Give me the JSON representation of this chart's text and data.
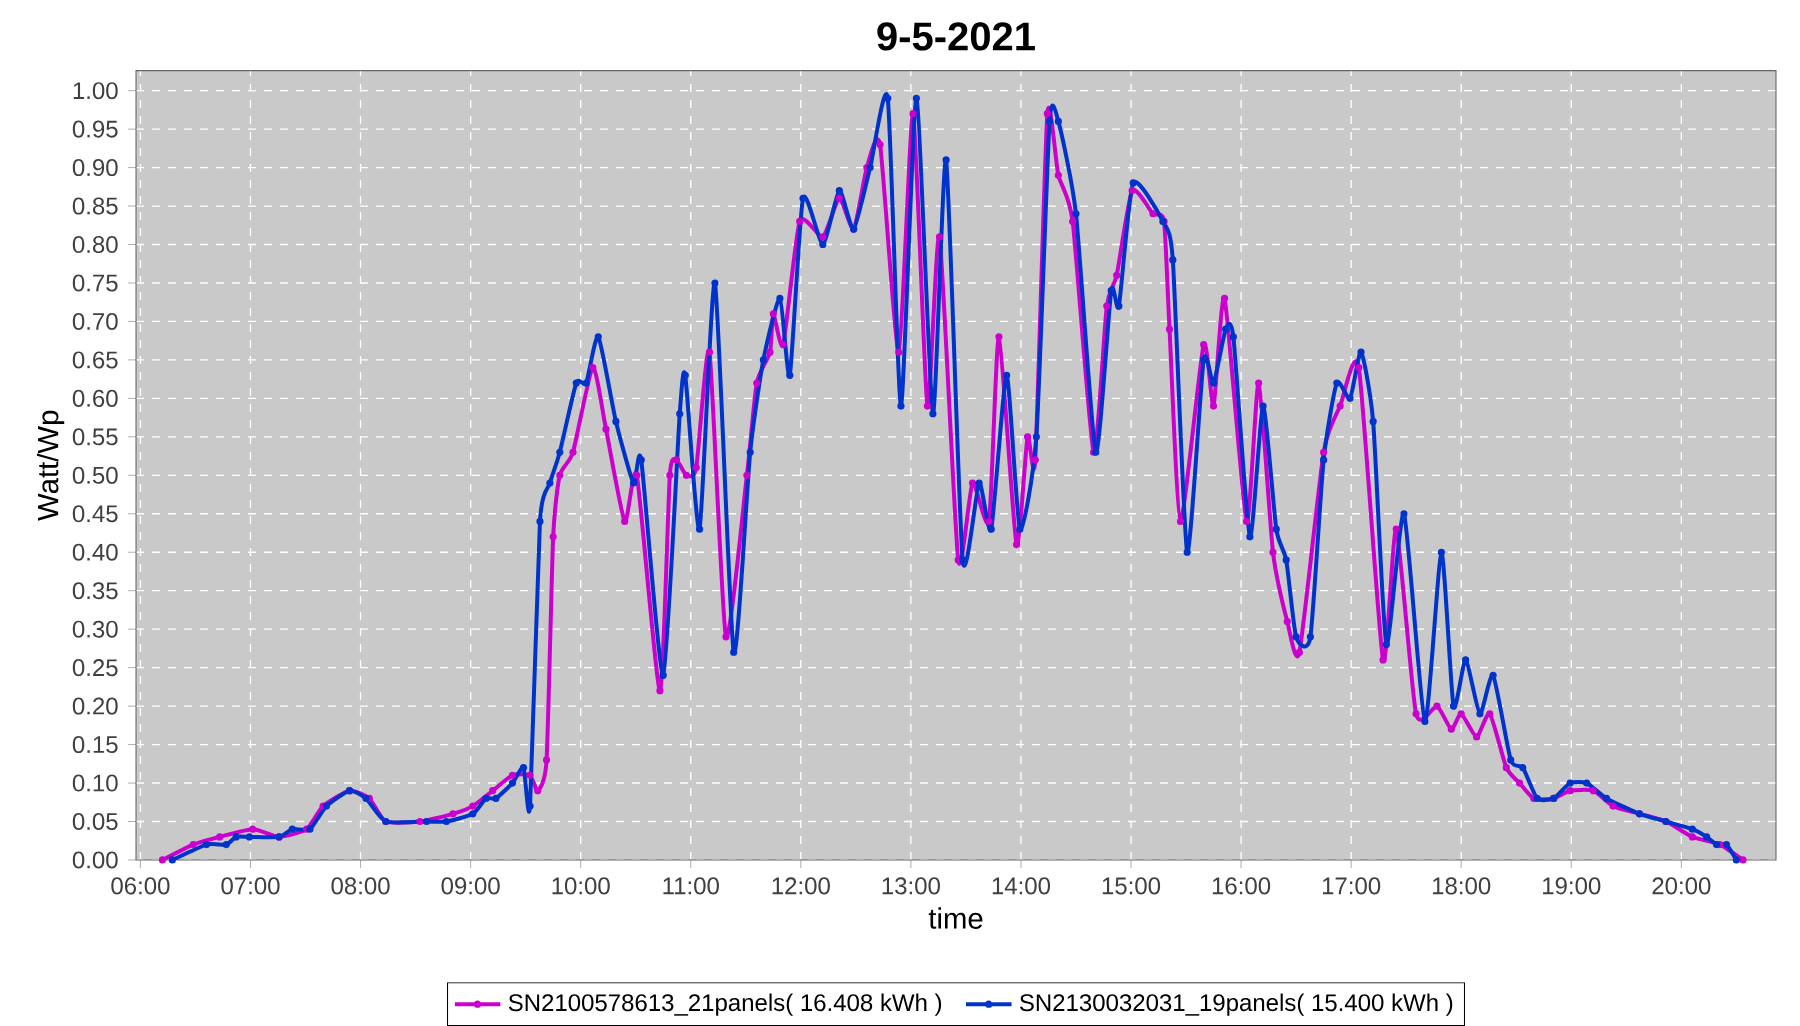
{
  "chart_data": {
    "type": "line",
    "title": "9-5-2021",
    "xlabel": "time",
    "ylabel": "Watt/Wp",
    "xlim": [
      5.96,
      20.86
    ],
    "ylim": [
      0,
      1.026
    ],
    "xticks": [
      {
        "value": 6,
        "label": "06:00"
      },
      {
        "value": 7,
        "label": "07:00"
      },
      {
        "value": 8,
        "label": "08:00"
      },
      {
        "value": 9,
        "label": "09:00"
      },
      {
        "value": 10,
        "label": "10:00"
      },
      {
        "value": 11,
        "label": "11:00"
      },
      {
        "value": 12,
        "label": "12:00"
      },
      {
        "value": 13,
        "label": "13:00"
      },
      {
        "value": 14,
        "label": "14:00"
      },
      {
        "value": 15,
        "label": "15:00"
      },
      {
        "value": 16,
        "label": "16:00"
      },
      {
        "value": 17,
        "label": "17:00"
      },
      {
        "value": 18,
        "label": "18:00"
      },
      {
        "value": 19,
        "label": "19:00"
      },
      {
        "value": 20,
        "label": "20:00"
      }
    ],
    "yticks": [
      {
        "value": 0,
        "label": "0.00"
      },
      {
        "value": 0.05,
        "label": "0.05"
      },
      {
        "value": 0.1,
        "label": "0.10"
      },
      {
        "value": 0.15,
        "label": "0.15"
      },
      {
        "value": 0.2,
        "label": "0.20"
      },
      {
        "value": 0.25,
        "label": "0.25"
      },
      {
        "value": 0.3,
        "label": "0.30"
      },
      {
        "value": 0.35,
        "label": "0.35"
      },
      {
        "value": 0.4,
        "label": "0.40"
      },
      {
        "value": 0.45,
        "label": "0.45"
      },
      {
        "value": 0.5,
        "label": "0.50"
      },
      {
        "value": 0.55,
        "label": "0.55"
      },
      {
        "value": 0.6,
        "label": "0.60"
      },
      {
        "value": 0.65,
        "label": "0.65"
      },
      {
        "value": 0.7,
        "label": "0.70"
      },
      {
        "value": 0.75,
        "label": "0.75"
      },
      {
        "value": 0.8,
        "label": "0.80"
      },
      {
        "value": 0.85,
        "label": "0.85"
      },
      {
        "value": 0.9,
        "label": "0.90"
      },
      {
        "value": 0.95,
        "label": "0.95"
      },
      {
        "value": 1,
        "label": "1.00"
      }
    ],
    "grid": true,
    "legend": "bottom",
    "marker": "circle",
    "line_style": "solid",
    "series": [
      {
        "name": "SN2100578613_21panels( 16.408 kWh )",
        "color": "#cc00cc",
        "x": [
          6.2,
          6.48,
          6.72,
          7.02,
          7.26,
          7.51,
          7.66,
          7.9,
          8.08,
          8.23,
          8.54,
          8.84,
          9.02,
          9.2,
          9.38,
          9.54,
          9.61,
          9.69,
          9.75,
          9.81,
          9.93,
          10.11,
          10.23,
          10.4,
          10.51,
          10.72,
          10.81,
          10.87,
          10.96,
          11.05,
          11.17,
          11.32,
          11.51,
          11.6,
          11.72,
          11.75,
          11.84,
          11.99,
          12.2,
          12.35,
          12.48,
          12.6,
          12.72,
          12.89,
          13.02,
          13.15,
          13.26,
          13.43,
          13.56,
          13.71,
          13.8,
          13.96,
          14.06,
          14.13,
          14.24,
          14.34,
          14.47,
          14.66,
          14.78,
          14.87,
          15.01,
          15.2,
          15.3,
          15.35,
          15.45,
          15.66,
          15.75,
          15.85,
          16.05,
          16.16,
          16.29,
          16.42,
          16.53,
          16.75,
          16.9,
          17.07,
          17.29,
          17.41,
          17.59,
          17.78,
          17.91,
          18.0,
          18.14,
          18.26,
          18.41,
          18.53,
          18.66,
          18.84,
          18.99,
          19.2,
          19.38,
          19.62,
          19.86,
          20.1,
          20.35,
          20.56
        ],
        "values": [
          0,
          0.02,
          0.03,
          0.04,
          0.03,
          0.04,
          0.07,
          0.09,
          0.08,
          0.05,
          0.05,
          0.06,
          0.07,
          0.09,
          0.11,
          0.11,
          0.09,
          0.13,
          0.42,
          0.5,
          0.53,
          0.64,
          0.56,
          0.44,
          0.5,
          0.22,
          0.5,
          0.52,
          0.5,
          0.51,
          0.66,
          0.29,
          0.5,
          0.62,
          0.66,
          0.71,
          0.67,
          0.83,
          0.81,
          0.86,
          0.82,
          0.9,
          0.93,
          0.66,
          0.97,
          0.59,
          0.81,
          0.39,
          0.49,
          0.44,
          0.68,
          0.41,
          0.55,
          0.52,
          0.97,
          0.89,
          0.83,
          0.53,
          0.72,
          0.76,
          0.87,
          0.84,
          0.83,
          0.69,
          0.44,
          0.67,
          0.59,
          0.73,
          0.44,
          0.62,
          0.4,
          0.31,
          0.27,
          0.53,
          0.59,
          0.64,
          0.26,
          0.43,
          0.19,
          0.2,
          0.17,
          0.19,
          0.16,
          0.19,
          0.12,
          0.1,
          0.08,
          0.08,
          0.09,
          0.09,
          0.07,
          0.06,
          0.05,
          0.03,
          0.02,
          0
        ]
      },
      {
        "name": "SN2130032031_19panels( 15.400 kWh )",
        "color": "#0033cc",
        "x": [
          6.29,
          6.6,
          6.78,
          6.87,
          6.99,
          7.26,
          7.38,
          7.54,
          7.69,
          7.9,
          8.05,
          8.23,
          8.6,
          8.78,
          9.02,
          9.14,
          9.23,
          9.38,
          9.48,
          9.54,
          9.63,
          9.72,
          9.81,
          9.96,
          10.05,
          10.16,
          10.32,
          10.48,
          10.55,
          10.75,
          10.9,
          10.95,
          11.08,
          11.22,
          11.39,
          11.54,
          11.66,
          11.81,
          11.9,
          12.02,
          12.2,
          12.35,
          12.48,
          12.63,
          12.79,
          12.91,
          13.05,
          13.2,
          13.32,
          13.47,
          13.62,
          13.73,
          13.87,
          13.99,
          14.14,
          14.26,
          14.34,
          14.5,
          14.68,
          14.82,
          14.89,
          15.02,
          15.29,
          15.38,
          15.51,
          15.66,
          15.75,
          15.86,
          15.93,
          16.08,
          16.2,
          16.32,
          16.41,
          16.5,
          16.63,
          16.75,
          16.87,
          16.99,
          17.09,
          17.2,
          17.32,
          17.48,
          17.67,
          17.82,
          17.93,
          18.04,
          18.17,
          18.29,
          18.45,
          18.56,
          18.69,
          18.84,
          18.99,
          19.14,
          19.32,
          19.62,
          19.86,
          20.1,
          20.23,
          20.32,
          20.41,
          20.5
        ],
        "values": [
          0,
          0.02,
          0.02,
          0.03,
          0.03,
          0.03,
          0.04,
          0.04,
          0.07,
          0.09,
          0.08,
          0.05,
          0.05,
          0.05,
          0.06,
          0.08,
          0.08,
          0.1,
          0.12,
          0.07,
          0.44,
          0.49,
          0.53,
          0.62,
          0.62,
          0.68,
          0.57,
          0.49,
          0.52,
          0.24,
          0.58,
          0.63,
          0.43,
          0.75,
          0.27,
          0.53,
          0.65,
          0.73,
          0.63,
          0.86,
          0.8,
          0.87,
          0.82,
          0.9,
          0.99,
          0.59,
          0.99,
          0.58,
          0.91,
          0.39,
          0.49,
          0.43,
          0.63,
          0.43,
          0.55,
          0.96,
          0.96,
          0.84,
          0.53,
          0.74,
          0.72,
          0.88,
          0.83,
          0.78,
          0.4,
          0.65,
          0.62,
          0.69,
          0.68,
          0.42,
          0.59,
          0.43,
          0.39,
          0.29,
          0.29,
          0.52,
          0.62,
          0.6,
          0.66,
          0.57,
          0.28,
          0.45,
          0.18,
          0.4,
          0.2,
          0.26,
          0.19,
          0.24,
          0.13,
          0.12,
          0.08,
          0.08,
          0.1,
          0.1,
          0.08,
          0.06,
          0.05,
          0.04,
          0.03,
          0.02,
          0.02,
          0
        ]
      }
    ]
  }
}
